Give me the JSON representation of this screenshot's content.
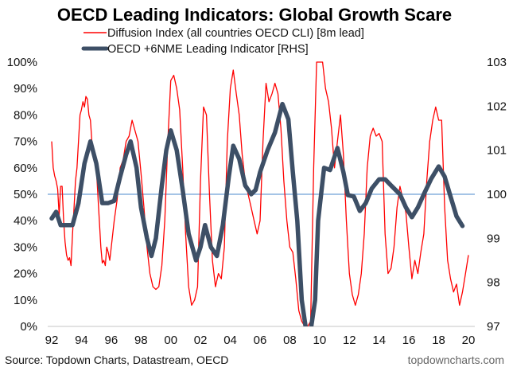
{
  "chart_data": {
    "type": "line",
    "title": "OECD Leading Indicators: Global Growth Scare",
    "xlabel": "",
    "ylabel": "",
    "ylabel_right": "",
    "x_range": [
      1992,
      2020
    ],
    "x_ticks": [
      1992,
      1994,
      1996,
      1998,
      2000,
      2002,
      2004,
      2006,
      2008,
      2010,
      2012,
      2014,
      2016,
      2018,
      2020
    ],
    "x_tick_labels": [
      "92",
      "94",
      "96",
      "98",
      "00",
      "02",
      "04",
      "06",
      "08",
      "10",
      "12",
      "14",
      "16",
      "18",
      "20"
    ],
    "ylim": [
      0,
      100
    ],
    "y_ticks": [
      0,
      10,
      20,
      30,
      40,
      50,
      60,
      70,
      80,
      90,
      100
    ],
    "y_tick_labels": [
      "0%",
      "10%",
      "20%",
      "30%",
      "40%",
      "50%",
      "60%",
      "70%",
      "80%",
      "90%",
      "100%"
    ],
    "ylim_right": [
      97,
      103
    ],
    "y_ticks_right": [
      97,
      98,
      99,
      100,
      101,
      102,
      103
    ],
    "y_tick_labels_right": [
      "97",
      "98",
      "99",
      "100",
      "101",
      "102",
      "103"
    ],
    "grid": false,
    "reference_line": {
      "axis": "left",
      "value": 50,
      "color": "#6fa0d8"
    },
    "legend": {
      "placement": "top-center"
    },
    "series": [
      {
        "name": "Diffusion Index (all countries OECD CLI) [8m lead]",
        "axis": "left",
        "color": "#ff0000",
        "x": [
          1992.0,
          1992.1,
          1992.2,
          1992.3,
          1992.4,
          1992.5,
          1992.6,
          1992.7,
          1992.8,
          1992.9,
          1993.0,
          1993.1,
          1993.2,
          1993.3,
          1993.4,
          1993.5,
          1993.6,
          1993.7,
          1993.8,
          1993.9,
          1994.0,
          1994.1,
          1994.2,
          1994.3,
          1994.4,
          1994.5,
          1994.6,
          1994.7,
          1994.8,
          1994.9,
          1995.0,
          1995.1,
          1995.2,
          1995.3,
          1995.4,
          1995.5,
          1995.6,
          1995.7,
          1995.8,
          1995.9,
          1996.0,
          1996.2,
          1996.4,
          1996.6,
          1996.8,
          1997.0,
          1997.2,
          1997.4,
          1997.6,
          1997.8,
          1998.0,
          1998.2,
          1998.4,
          1998.6,
          1998.8,
          1999.0,
          1999.2,
          1999.4,
          1999.6,
          1999.8,
          2000.0,
          2000.2,
          2000.4,
          2000.6,
          2000.8,
          2001.0,
          2001.2,
          2001.4,
          2001.6,
          2001.8,
          2002.0,
          2002.2,
          2002.4,
          2002.6,
          2002.8,
          2003.0,
          2003.2,
          2003.4,
          2003.6,
          2003.8,
          2004.0,
          2004.2,
          2004.4,
          2004.6,
          2004.8,
          2005.0,
          2005.2,
          2005.4,
          2005.6,
          2005.8,
          2006.0,
          2006.2,
          2006.4,
          2006.6,
          2006.8,
          2007.0,
          2007.2,
          2007.4,
          2007.6,
          2007.8,
          2008.0,
          2008.2,
          2008.4,
          2008.6,
          2008.8,
          2009.0,
          2009.2,
          2009.4,
          2009.6,
          2009.8,
          2010.0,
          2010.2,
          2010.4,
          2010.6,
          2010.8,
          2011.0,
          2011.2,
          2011.4,
          2011.6,
          2011.8,
          2012.0,
          2012.2,
          2012.4,
          2012.6,
          2012.8,
          2013.0,
          2013.2,
          2013.4,
          2013.6,
          2013.8,
          2014.0,
          2014.2,
          2014.4,
          2014.6,
          2014.8,
          2015.0,
          2015.2,
          2015.4,
          2015.6,
          2015.8,
          2016.0,
          2016.2,
          2016.4,
          2016.6,
          2016.8,
          2017.0,
          2017.2,
          2017.4,
          2017.6,
          2017.8,
          2018.0,
          2018.2,
          2018.4,
          2018.6,
          2018.8,
          2019.0,
          2019.2,
          2019.4,
          2019.6,
          2019.8,
          2020.0
        ],
        "values": [
          70,
          60,
          57,
          55,
          52,
          42,
          53,
          53,
          40,
          32,
          27,
          25,
          26,
          23,
          35,
          45,
          55,
          60,
          70,
          80,
          82,
          85,
          83,
          87,
          86,
          80,
          78,
          70,
          68,
          65,
          60,
          50,
          40,
          30,
          24,
          25,
          23,
          30,
          28,
          25,
          30,
          40,
          48,
          60,
          63,
          70,
          72,
          78,
          74,
          70,
          58,
          45,
          30,
          20,
          15,
          14,
          15,
          23,
          40,
          70,
          93,
          95,
          90,
          82,
          60,
          35,
          15,
          8,
          10,
          15,
          55,
          83,
          80,
          50,
          25,
          15,
          20,
          18,
          30,
          70,
          90,
          97,
          88,
          80,
          65,
          55,
          50,
          45,
          40,
          35,
          40,
          70,
          92,
          85,
          88,
          92,
          88,
          75,
          55,
          40,
          30,
          28,
          18,
          6,
          2,
          0,
          0,
          2,
          60,
          100,
          100,
          100,
          90,
          85,
          75,
          60,
          70,
          80,
          65,
          40,
          20,
          12,
          8,
          12,
          20,
          35,
          60,
          72,
          75,
          72,
          73,
          70,
          35,
          20,
          22,
          30,
          45,
          53,
          48,
          43,
          30,
          18,
          25,
          20,
          28,
          35,
          55,
          70,
          78,
          83,
          78,
          78,
          45,
          25,
          18,
          13,
          16,
          8,
          13,
          20,
          27
        ]
      },
      {
        "name": "OECD +6NME Leading Indicator [RHS]",
        "axis": "right",
        "color": "#3d4f66",
        "x": [
          1992.0,
          1992.3,
          1992.6,
          1993.0,
          1993.4,
          1993.8,
          1994.2,
          1994.6,
          1995.0,
          1995.4,
          1995.8,
          1996.2,
          1996.6,
          1997.0,
          1997.3,
          1997.7,
          1998.0,
          1998.4,
          1998.7,
          1999.0,
          1999.4,
          1999.7,
          2000.0,
          2000.4,
          2000.8,
          2001.2,
          2001.7,
          2002.0,
          2002.3,
          2002.7,
          2003.1,
          2003.5,
          2003.9,
          2004.2,
          2004.6,
          2005.0,
          2005.4,
          2005.7,
          2006.0,
          2006.5,
          2007.0,
          2007.5,
          2007.9,
          2008.2,
          2008.5,
          2008.8,
          2009.1,
          2009.4,
          2009.7,
          2009.9,
          2010.3,
          2010.7,
          2011.2,
          2011.6,
          2011.9,
          2012.3,
          2012.7,
          2013.1,
          2013.5,
          2014.0,
          2014.4,
          2014.8,
          2015.1,
          2015.4,
          2015.8,
          2016.2,
          2016.6,
          2017.0,
          2017.5,
          2018.0,
          2018.4,
          2018.8,
          2019.2,
          2019.6
        ],
        "values": [
          99.45,
          99.6,
          99.3,
          99.3,
          99.3,
          99.8,
          100.7,
          101.2,
          100.7,
          99.8,
          99.8,
          99.85,
          100.4,
          100.9,
          101.2,
          100.6,
          99.7,
          99.0,
          98.6,
          99.0,
          100.2,
          101.0,
          101.45,
          101.0,
          100.1,
          99.1,
          98.5,
          98.8,
          99.3,
          98.8,
          98.6,
          99.3,
          100.4,
          101.1,
          100.8,
          100.2,
          100.0,
          100.1,
          100.5,
          101.0,
          101.4,
          102.05,
          101.7,
          100.5,
          99.4,
          97.6,
          96.9,
          96.9,
          97.6,
          99.4,
          100.6,
          100.55,
          101.05,
          100.5,
          99.98,
          99.95,
          99.62,
          99.8,
          100.13,
          100.34,
          100.34,
          100.2,
          100.1,
          100.0,
          99.7,
          99.48,
          99.7,
          100.0,
          100.35,
          100.63,
          100.4,
          99.95,
          99.5,
          99.28
        ]
      }
    ]
  },
  "footer": {
    "source": "Source: Topdown Charts, Datastream, OECD",
    "website": "topdowncharts.com"
  }
}
